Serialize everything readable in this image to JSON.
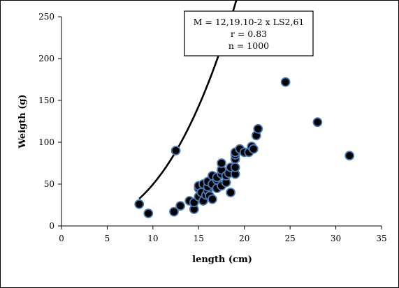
{
  "chart_data": {
    "type": "scatter",
    "xlabel": "length (cm)",
    "ylabel": "Weigth (g)",
    "xlim": [
      0,
      35
    ],
    "ylim": [
      0,
      250
    ],
    "x_ticks": [
      "0",
      "5",
      "10",
      "15",
      "20",
      "25",
      "30",
      "35"
    ],
    "y_ticks": [
      "0",
      "50",
      "100",
      "150",
      "200",
      "250"
    ],
    "grid": false,
    "annotation": [
      "M = 12,19.10-2 x LS2,61",
      "r = 0.83",
      "n = 1000"
    ],
    "fit_curve": {
      "a": 0.1219,
      "b": 2.61,
      "x_range": [
        8.5,
        31.5
      ]
    },
    "marker_fill": "#000000",
    "marker_edge": "#4a7ab5",
    "points": [
      [
        8.5,
        26
      ],
      [
        9.5,
        15
      ],
      [
        12.3,
        17
      ],
      [
        12.5,
        90
      ],
      [
        13,
        24
      ],
      [
        14,
        30
      ],
      [
        14.5,
        20
      ],
      [
        14.5,
        28
      ],
      [
        15,
        35
      ],
      [
        15,
        45
      ],
      [
        15,
        48
      ],
      [
        15.3,
        40
      ],
      [
        15.5,
        50
      ],
      [
        15.5,
        30
      ],
      [
        15.8,
        37
      ],
      [
        16,
        42
      ],
      [
        16,
        47
      ],
      [
        16,
        53
      ],
      [
        16.2,
        36
      ],
      [
        16.5,
        32
      ],
      [
        16.5,
        50
      ],
      [
        16.5,
        60
      ],
      [
        17,
        45
      ],
      [
        17,
        55
      ],
      [
        17,
        58
      ],
      [
        17.5,
        48
      ],
      [
        17.5,
        62
      ],
      [
        17.5,
        67
      ],
      [
        17.5,
        75
      ],
      [
        18,
        52
      ],
      [
        18,
        60
      ],
      [
        18.3,
        63
      ],
      [
        18.5,
        40
      ],
      [
        18.5,
        70
      ],
      [
        19,
        62
      ],
      [
        19,
        70
      ],
      [
        19,
        80
      ],
      [
        19,
        85
      ],
      [
        19,
        88
      ],
      [
        19.5,
        92
      ],
      [
        20,
        88
      ],
      [
        20.5,
        88
      ],
      [
        20.8,
        95
      ],
      [
        21,
        92
      ],
      [
        21.3,
        108
      ],
      [
        21.5,
        116
      ],
      [
        24.5,
        172
      ],
      [
        28,
        124
      ],
      [
        31.5,
        84
      ]
    ]
  }
}
